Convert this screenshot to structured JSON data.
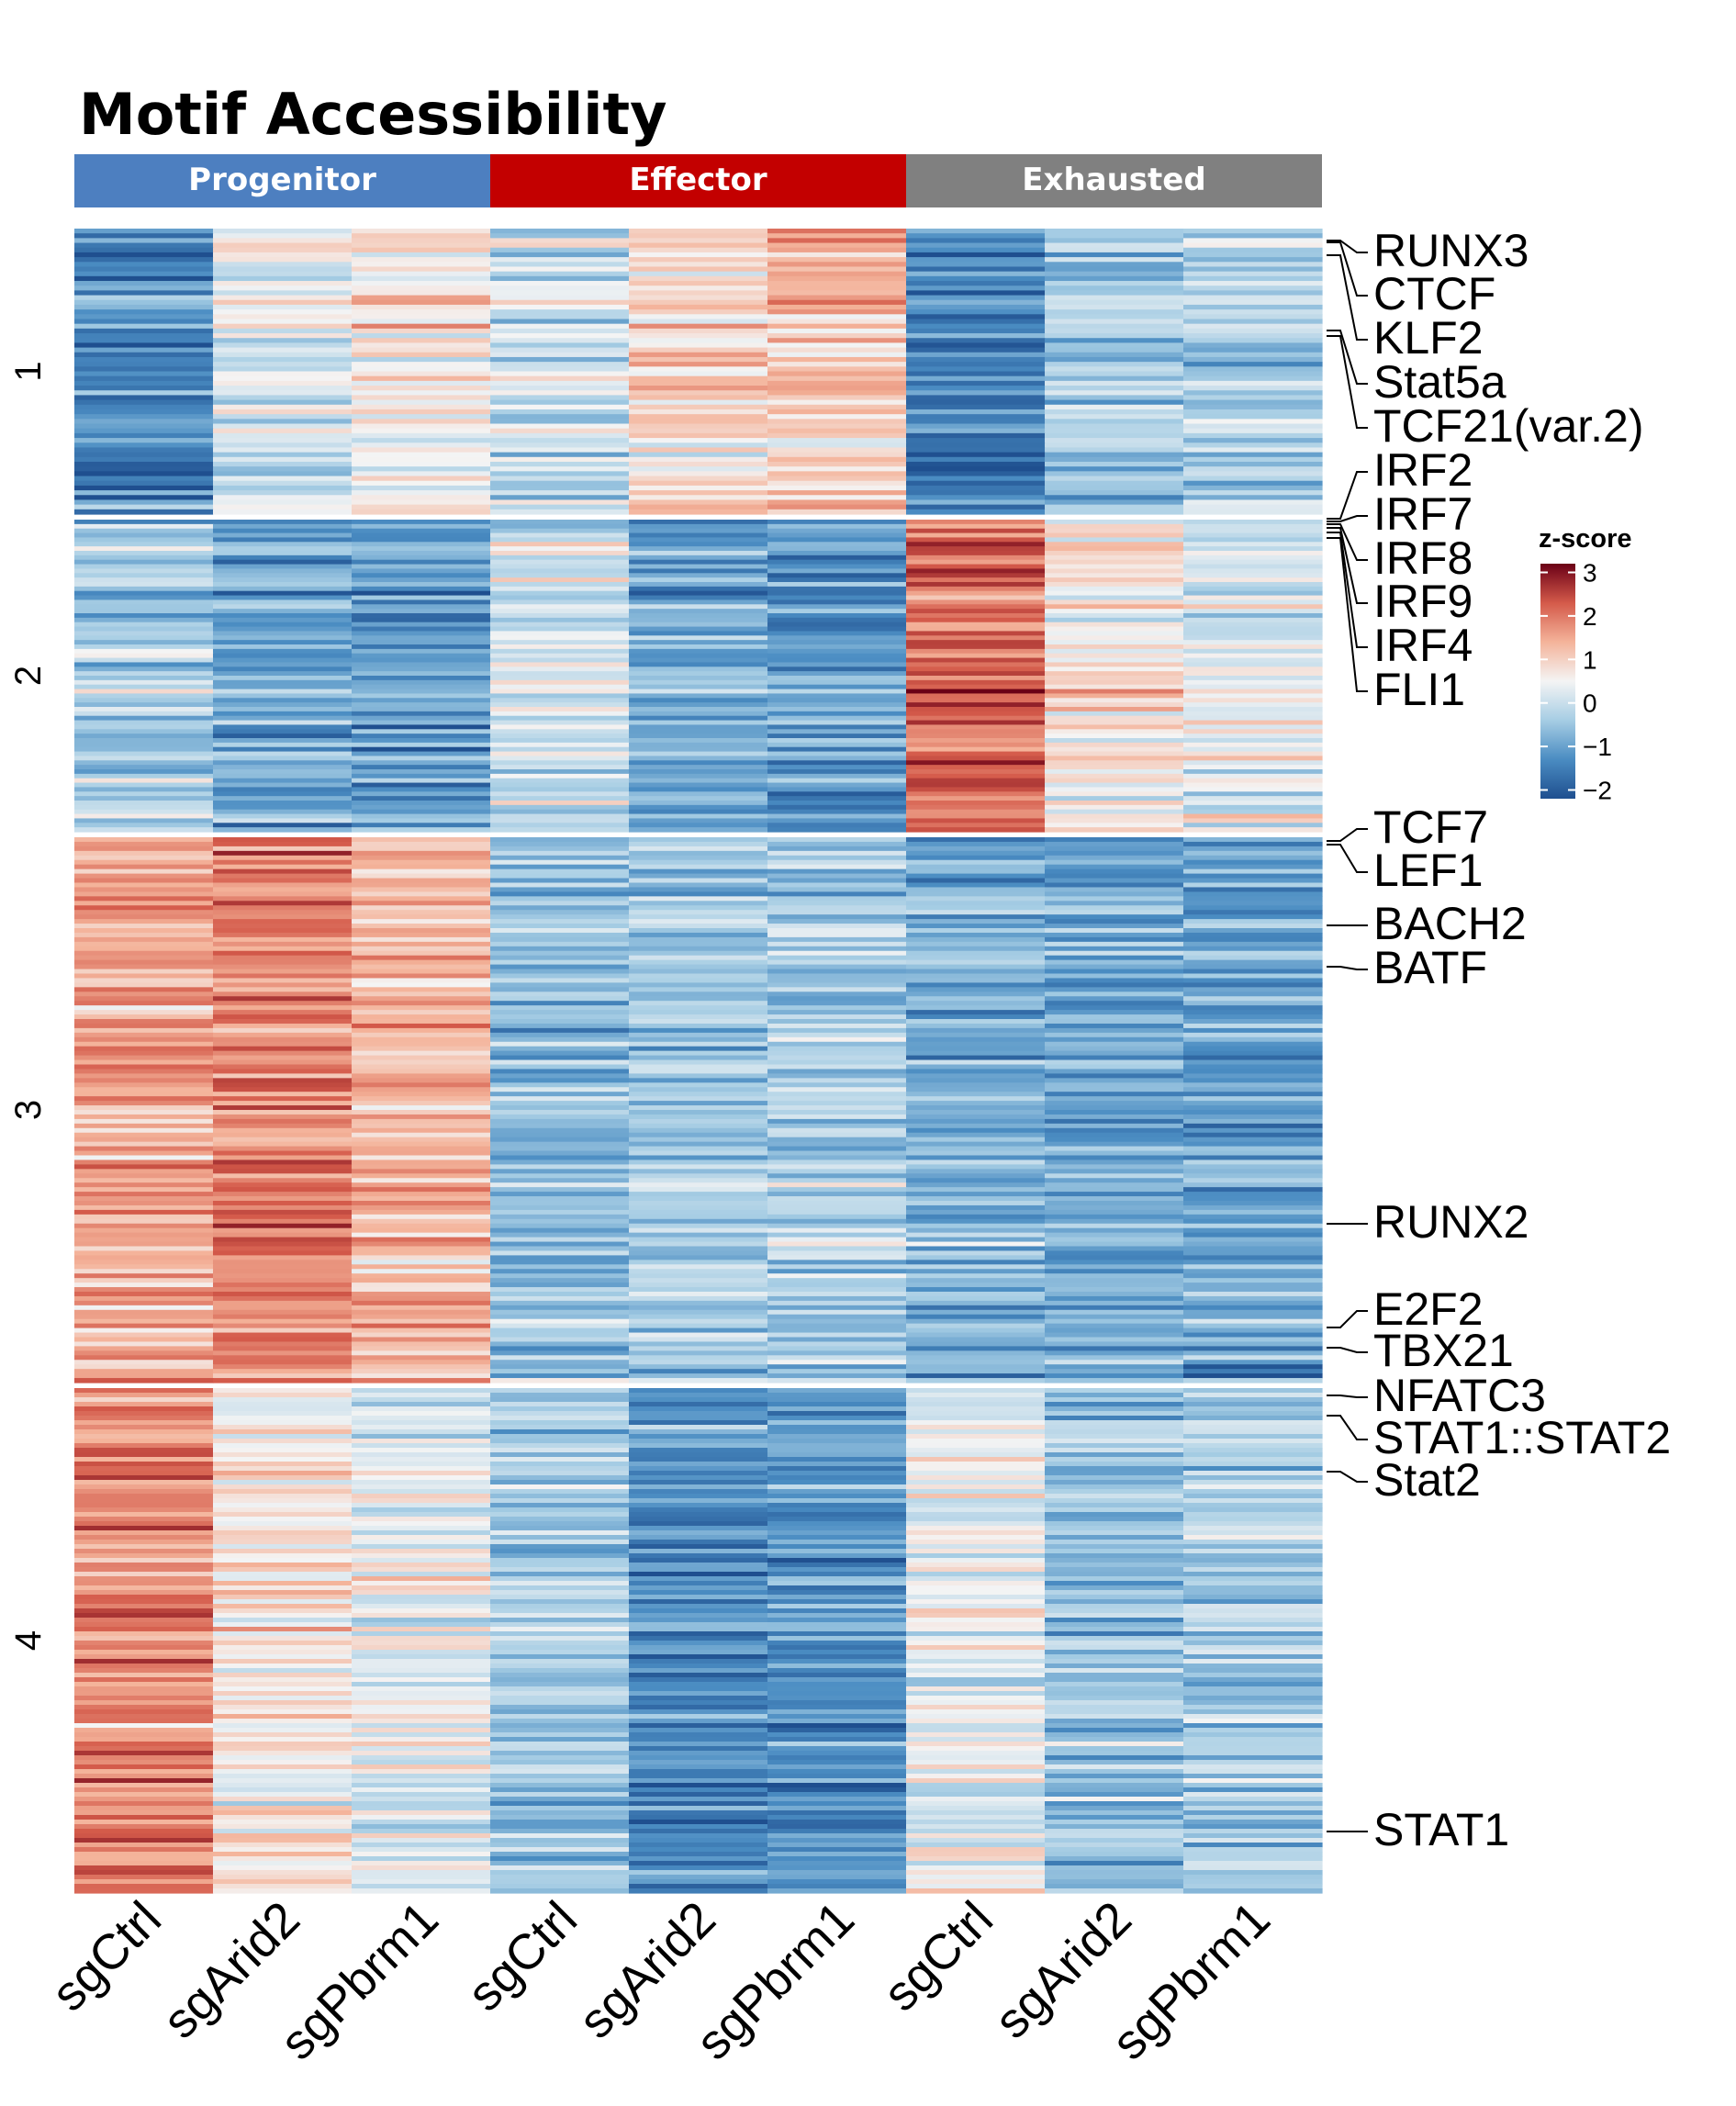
{
  "chart_data": {
    "type": "heatmap",
    "title": "Motif Accessibility",
    "column_groups": [
      {
        "name": "Progenitor",
        "color": "#4d7fc0"
      },
      {
        "name": "Effector",
        "color": "#c30000"
      },
      {
        "name": "Exhausted",
        "color": "#808080"
      }
    ],
    "columns": [
      "sgCtrl",
      "sgArid2",
      "sgPbrm1",
      "sgCtrl",
      "sgArid2",
      "sgPbrm1",
      "sgCtrl",
      "sgArid2",
      "sgPbrm1"
    ],
    "row_clusters": [
      {
        "name": "1",
        "mean_z": [
          -1.5,
          0.2,
          0.6,
          -0.1,
          0.9,
          1.1,
          -1.5,
          -0.5,
          -0.3
        ],
        "rows": 60
      },
      {
        "name": "2",
        "mean_z": [
          -0.3,
          -0.9,
          -1.1,
          0.1,
          -0.9,
          -1.1,
          2.2,
          0.7,
          0.3
        ],
        "rows": 70
      },
      {
        "name": "3",
        "mean_z": [
          1.5,
          1.9,
          1.3,
          -0.6,
          -0.5,
          -0.4,
          -0.8,
          -0.9,
          -1.0
        ],
        "rows": 120
      },
      {
        "name": "4",
        "mean_z": [
          1.9,
          0.7,
          0.3,
          -0.4,
          -1.3,
          -1.2,
          0.4,
          -0.5,
          -0.4
        ],
        "rows": 110
      }
    ],
    "motif_labels": [
      "RUNX3",
      "CTCF",
      "KLF2",
      "Stat5a",
      "TCF21(var.2)",
      "IRF2",
      "IRF7",
      "IRF8",
      "IRF9",
      "IRF4",
      "FLI1",
      "TCF7",
      "LEF1",
      "BACH2",
      "BATF",
      "RUNX2",
      "E2F2",
      "TBX21",
      "NFATC3",
      "STAT1::STAT2",
      "Stat2",
      "STAT1"
    ],
    "legend": {
      "title": "z-score",
      "ticks": [
        "3",
        "2",
        "1",
        "0",
        "−1",
        "−2"
      ],
      "range": [
        -2.2,
        3.2
      ],
      "colors": [
        "#1f4f8f",
        "#4a8cc2",
        "#a6cde4",
        "#f4f4f4",
        "#f4b39a",
        "#d45a4a",
        "#6b0016"
      ]
    }
  }
}
